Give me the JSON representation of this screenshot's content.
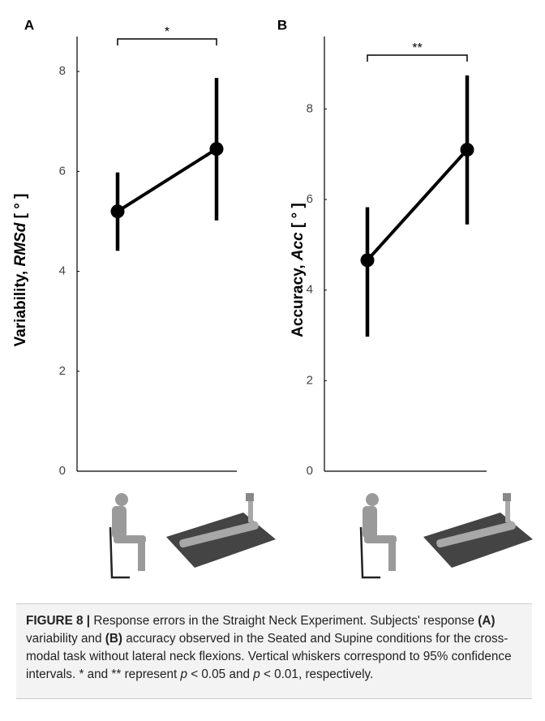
{
  "chart_data": [
    {
      "type": "errorbar",
      "panel": "A",
      "y_label": [
        "Variability, ",
        "RMSd",
        " [ ° ]"
      ],
      "categories": [
        null,
        null
      ],
      "values": [
        5.2,
        6.45
      ],
      "ci_low": [
        4.41,
        5.02
      ],
      "ci_high": [
        5.98,
        7.87
      ],
      "color": "#000000",
      "ylim": [
        0,
        8.7
      ],
      "yticks": [
        0,
        2,
        4,
        6,
        8
      ],
      "annotation": "*"
    },
    {
      "type": "errorbar",
      "panel": "B",
      "y_label": [
        "Accuracy, ",
        "Acc",
        " [ ° ]"
      ],
      "categories": [
        null,
        null
      ],
      "values": [
        4.66,
        7.1
      ],
      "ci_low": [
        2.97,
        5.45
      ],
      "ci_high": [
        5.83,
        8.74
      ],
      "color": "#000000",
      "ylim": [
        0,
        9.6
      ],
      "yticks": [
        0,
        2,
        4,
        6,
        8
      ],
      "annotation": "**"
    }
  ],
  "caption": [
    "FIGURE 8 |",
    " Response errors in the Straight Neck Experiment. Subjects' response ",
    "(A)",
    " variability and ",
    "(B)",
    " accuracy observed in the Seated and Supine conditions for the cross-modal task without lateral neck flexions. Vertical whiskers correspond to 95% confidence intervals. * and ** represent ",
    "p",
    " < 0.05 and ",
    "p",
    " < 0.01, respectively."
  ]
}
